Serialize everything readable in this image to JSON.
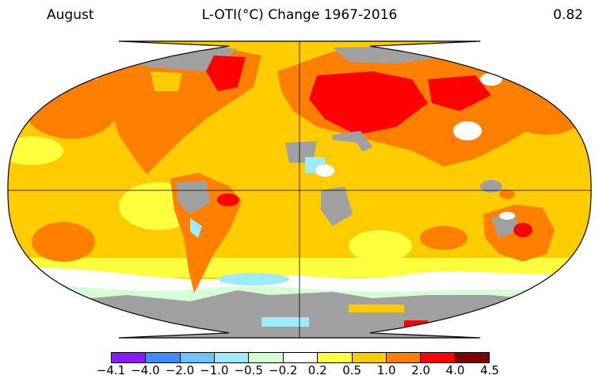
{
  "header": {
    "month": "August",
    "title": "L-OTI(°C) Change 1967-2016",
    "global_mean": "0.82"
  },
  "legend": {
    "ticks": [
      "−4.1",
      "−4.0",
      "−2.0",
      "−1.0",
      "−0.5",
      "−0.2",
      "0.2",
      "0.5",
      "1.0",
      "2.0",
      "4.0",
      "4.5"
    ],
    "colors": [
      "#8b1aff",
      "#3b8cff",
      "#6bc3ff",
      "#9eeaff",
      "#d7ffd7",
      "#ffffff",
      "#ffff40",
      "#ffcc00",
      "#ff8000",
      "#ff0000",
      "#800000"
    ]
  },
  "map": {
    "projection": "robinson",
    "no_data_color": "#a0a0a0"
  }
}
